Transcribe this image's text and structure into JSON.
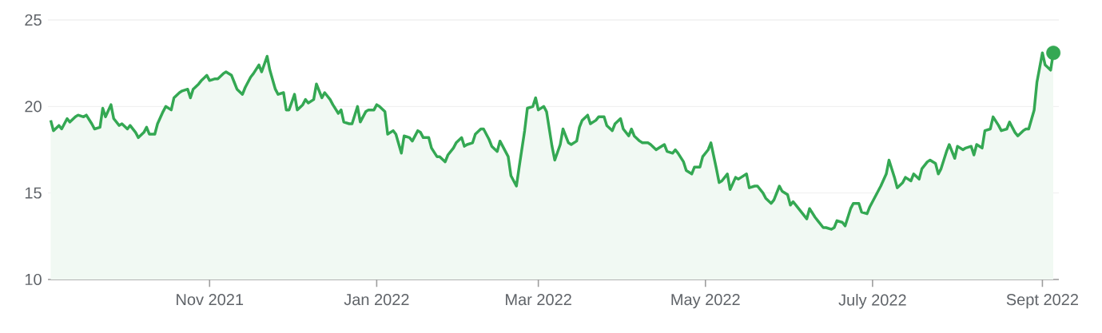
{
  "chart_data": {
    "type": "area",
    "xlim": [
      "2021-09-03",
      "2022-09-07"
    ],
    "xticks": [
      {
        "value": "2021-11-01",
        "label": "Nov 2021"
      },
      {
        "value": "2022-01-01",
        "label": "Jan 2022"
      },
      {
        "value": "2022-03-01",
        "label": "Mar 2022"
      },
      {
        "value": "2022-05-01",
        "label": "May 2022"
      },
      {
        "value": "2022-07-01",
        "label": "July 2022"
      },
      {
        "value": "2022-09-01",
        "label": "Sept 2022"
      }
    ],
    "ylim": [
      10,
      25
    ],
    "yticks": [
      10,
      15,
      20,
      25
    ],
    "grid": "y",
    "series": [
      {
        "color": "#34a853",
        "x": [
          "2021-09-04",
          "2021-09-05",
          "2021-09-07",
          "2021-09-08",
          "2021-09-10",
          "2021-09-11",
          "2021-09-13",
          "2021-09-14",
          "2021-09-16",
          "2021-09-17",
          "2021-09-19",
          "2021-09-20",
          "2021-09-22",
          "2021-09-23",
          "2021-09-24",
          "2021-09-26",
          "2021-09-27",
          "2021-09-29",
          "2021-09-30",
          "2021-10-02",
          "2021-10-03",
          "2021-10-05",
          "2021-10-06",
          "2021-10-08",
          "2021-10-09",
          "2021-10-10",
          "2021-10-12",
          "2021-10-13",
          "2021-10-15",
          "2021-10-16",
          "2021-10-18",
          "2021-10-19",
          "2021-10-21",
          "2021-10-22",
          "2021-10-24",
          "2021-10-25",
          "2021-10-26",
          "2021-10-28",
          "2021-10-29",
          "2021-10-31",
          "2021-11-01",
          "2021-11-03",
          "2021-11-04",
          "2021-11-06",
          "2021-11-07",
          "2021-11-09",
          "2021-11-10",
          "2021-11-11",
          "2021-11-13",
          "2021-11-14",
          "2021-11-16",
          "2021-11-17",
          "2021-11-19",
          "2021-11-20",
          "2021-11-22",
          "2021-11-23",
          "2021-11-25",
          "2021-11-26",
          "2021-11-28",
          "2021-11-29",
          "2021-11-30",
          "2021-12-02",
          "2021-12-03",
          "2021-12-05",
          "2021-12-06",
          "2021-12-07",
          "2021-12-09",
          "2021-12-10",
          "2021-12-12",
          "2021-12-13",
          "2021-12-15",
          "2021-12-16",
          "2021-12-18",
          "2021-12-19",
          "2021-12-20",
          "2021-12-22",
          "2021-12-23",
          "2021-12-25",
          "2021-12-26",
          "2021-12-28",
          "2021-12-29",
          "2021-12-31",
          "2022-01-01",
          "2022-01-02",
          "2022-01-04",
          "2022-01-05",
          "2022-01-07",
          "2022-01-08",
          "2022-01-10",
          "2022-01-11",
          "2022-01-13",
          "2022-01-14",
          "2022-01-16",
          "2022-01-17",
          "2022-01-18",
          "2022-01-20",
          "2022-01-21",
          "2022-01-23",
          "2022-01-24",
          "2022-01-26",
          "2022-01-27",
          "2022-01-29",
          "2022-01-30",
          "2022-02-01",
          "2022-02-02",
          "2022-02-03",
          "2022-02-05",
          "2022-02-06",
          "2022-02-08",
          "2022-02-09",
          "2022-02-11",
          "2022-02-12",
          "2022-02-14",
          "2022-02-15",
          "2022-02-17",
          "2022-02-18",
          "2022-02-19",
          "2022-02-21",
          "2022-02-22",
          "2022-02-24",
          "2022-02-25",
          "2022-02-27",
          "2022-02-28",
          "2022-03-01",
          "2022-03-03",
          "2022-03-04",
          "2022-03-06",
          "2022-03-07",
          "2022-03-09",
          "2022-03-10",
          "2022-03-12",
          "2022-03-13",
          "2022-03-15",
          "2022-03-16",
          "2022-03-17",
          "2022-03-19",
          "2022-03-20",
          "2022-03-22",
          "2022-03-23",
          "2022-03-25",
          "2022-03-26",
          "2022-03-28",
          "2022-03-29",
          "2022-03-31",
          "2022-04-01",
          "2022-04-03",
          "2022-04-04",
          "2022-04-05",
          "2022-04-07",
          "2022-04-08",
          "2022-04-10",
          "2022-04-11",
          "2022-04-13",
          "2022-04-14",
          "2022-04-16",
          "2022-04-17",
          "2022-04-19",
          "2022-04-20",
          "2022-04-21",
          "2022-04-23",
          "2022-04-24",
          "2022-04-26",
          "2022-04-27",
          "2022-04-29",
          "2022-04-30",
          "2022-05-02",
          "2022-05-03",
          "2022-05-05",
          "2022-05-06",
          "2022-05-07",
          "2022-05-09",
          "2022-05-10",
          "2022-05-12",
          "2022-05-13",
          "2022-05-14",
          "2022-05-16",
          "2022-05-17",
          "2022-05-19",
          "2022-05-20",
          "2022-05-22",
          "2022-05-23",
          "2022-05-25",
          "2022-05-26",
          "2022-05-28",
          "2022-05-29",
          "2022-05-31",
          "2022-06-01",
          "2022-06-02",
          "2022-06-04",
          "2022-06-05",
          "2022-06-07",
          "2022-06-08",
          "2022-06-10",
          "2022-06-11",
          "2022-06-13",
          "2022-06-14",
          "2022-06-16",
          "2022-06-17",
          "2022-06-18",
          "2022-06-20",
          "2022-06-21",
          "2022-06-23",
          "2022-06-24",
          "2022-06-26",
          "2022-06-27",
          "2022-06-29",
          "2022-06-30",
          "2022-07-01",
          "2022-07-03",
          "2022-07-04",
          "2022-07-06",
          "2022-07-07",
          "2022-07-09",
          "2022-07-10",
          "2022-07-12",
          "2022-07-13",
          "2022-07-15",
          "2022-07-16",
          "2022-07-18",
          "2022-07-19",
          "2022-07-21",
          "2022-07-22",
          "2022-07-24",
          "2022-07-25",
          "2022-07-26",
          "2022-07-28",
          "2022-07-29",
          "2022-07-31",
          "2022-08-01",
          "2022-08-03",
          "2022-08-04",
          "2022-08-06",
          "2022-08-07",
          "2022-08-08",
          "2022-08-10",
          "2022-08-11",
          "2022-08-13",
          "2022-08-14",
          "2022-08-16",
          "2022-08-17",
          "2022-08-19",
          "2022-08-20",
          "2022-08-22",
          "2022-08-23",
          "2022-08-25",
          "2022-08-26",
          "2022-08-27",
          "2022-08-29",
          "2022-08-30",
          "2022-09-01",
          "2022-09-02",
          "2022-09-04",
          "2022-09-05"
        ],
        "values": [
          19.2,
          18.6,
          18.9,
          18.7,
          19.3,
          19.1,
          19.4,
          19.5,
          19.4,
          19.5,
          19.0,
          18.7,
          18.8,
          19.9,
          19.4,
          20.1,
          19.3,
          18.9,
          19.0,
          18.7,
          18.9,
          18.5,
          18.2,
          18.5,
          18.8,
          18.4,
          18.4,
          19.0,
          19.7,
          20.0,
          19.8,
          20.5,
          20.8,
          20.9,
          21.0,
          20.5,
          21.0,
          21.3,
          21.5,
          21.8,
          21.5,
          21.6,
          21.6,
          21.9,
          22.0,
          21.8,
          21.4,
          21.0,
          20.7,
          21.1,
          21.7,
          21.9,
          22.4,
          22.0,
          22.9,
          22.1,
          21.0,
          20.7,
          20.8,
          19.8,
          19.8,
          20.7,
          19.8,
          20.1,
          20.4,
          20.2,
          20.4,
          21.3,
          20.5,
          20.8,
          20.4,
          20.1,
          19.6,
          19.8,
          19.1,
          19.0,
          19.0,
          20.0,
          19.1,
          19.7,
          19.8,
          19.8,
          20.1,
          20.0,
          19.7,
          18.4,
          18.6,
          18.4,
          17.3,
          18.3,
          18.2,
          18.0,
          18.6,
          18.5,
          18.2,
          18.2,
          17.6,
          17.1,
          17.1,
          16.8,
          17.2,
          17.6,
          17.9,
          18.2,
          17.7,
          17.8,
          17.9,
          18.4,
          18.7,
          18.7,
          18.1,
          17.7,
          17.4,
          18.0,
          17.4,
          17.1,
          16.0,
          15.4,
          16.5,
          18.6,
          19.9,
          20.0,
          20.5,
          19.8,
          20.0,
          19.7,
          17.7,
          16.9,
          17.8,
          18.7,
          17.9,
          17.8,
          18.0,
          18.8,
          19.2,
          19.5,
          19.0,
          19.2,
          19.4,
          19.4,
          18.9,
          18.6,
          19.0,
          19.3,
          18.7,
          18.3,
          18.7,
          18.3,
          18.0,
          17.9,
          17.9,
          17.8,
          17.5,
          17.6,
          17.8,
          17.4,
          17.3,
          17.5,
          17.3,
          16.8,
          16.3,
          16.1,
          16.5,
          16.5,
          17.1,
          17.5,
          17.9,
          16.4,
          15.6,
          15.7,
          16.1,
          15.2,
          15.9,
          15.8,
          15.9,
          16.1,
          15.3,
          15.4,
          15.4,
          15.0,
          14.7,
          14.4,
          14.6,
          15.4,
          15.1,
          14.9,
          14.3,
          14.5,
          14.1,
          13.9,
          13.5,
          14.1,
          13.6,
          13.4,
          13.0,
          13.0,
          12.9,
          13.0,
          13.4,
          13.3,
          13.1,
          14.1,
          14.4,
          14.4,
          13.9,
          13.8,
          14.2,
          14.5,
          15.1,
          15.4,
          16.1,
          16.9,
          15.9,
          15.3,
          15.6,
          15.9,
          15.7,
          16.1,
          15.8,
          16.4,
          16.8,
          16.9,
          16.7,
          16.1,
          16.4,
          17.4,
          17.8,
          17.0,
          17.7,
          17.5,
          17.6,
          17.7,
          17.2,
          17.8,
          17.6,
          18.6,
          18.7,
          19.4,
          18.9,
          18.6,
          18.7,
          19.1,
          18.5,
          18.3,
          18.6,
          18.7,
          18.7,
          19.8,
          21.4,
          23.1,
          22.4,
          22.1,
          23.1
        ]
      },
      {
        "type": "scatter",
        "color": "#34a853",
        "marker": "circle",
        "x": [
          "2022-09-05"
        ],
        "values": [
          23.1
        ]
      }
    ]
  }
}
